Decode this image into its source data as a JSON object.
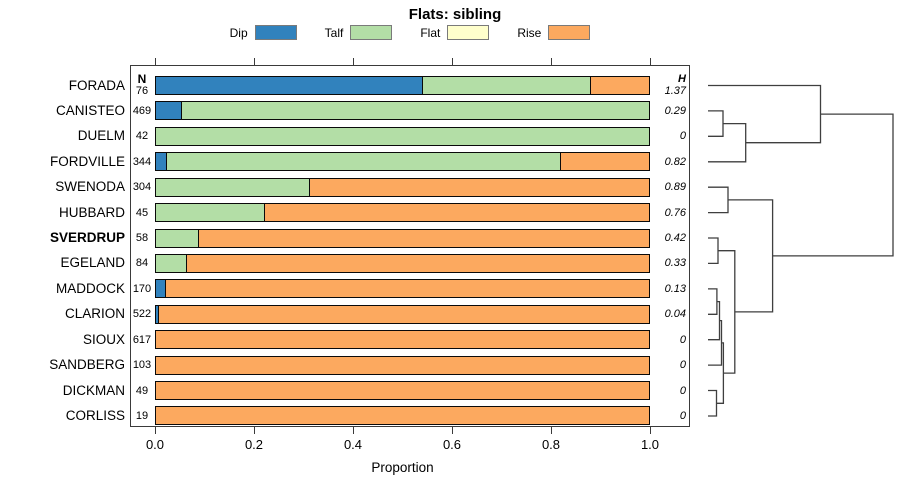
{
  "title": "Flats: sibling",
  "legend": [
    {
      "label": "Dip",
      "color": "#3182bd"
    },
    {
      "label": "Talf",
      "color": "#b3dea6"
    },
    {
      "label": "Flat",
      "color": "#ffffcc"
    },
    {
      "label": "Rise",
      "color": "#fca95f"
    }
  ],
  "axis": {
    "ticks": [
      "0.0",
      "0.2",
      "0.4",
      "0.6",
      "0.8",
      "1.0"
    ],
    "xlabel": "Proportion",
    "n_header": "N",
    "h_header": "H"
  },
  "chart_data": {
    "type": "bar",
    "stacked": true,
    "orientation": "horizontal",
    "title": "Flats: sibling",
    "xlabel": "Proportion",
    "xlim": [
      0,
      1
    ],
    "categories": [
      "Dip",
      "Talf",
      "Flat",
      "Rise"
    ],
    "colors": {
      "Dip": "#3182bd",
      "Talf": "#b3dea6",
      "Flat": "#ffffcc",
      "Rise": "#fca95f"
    },
    "rows": [
      {
        "label": "FORADA",
        "bold": false,
        "n": 76,
        "h": "1.37",
        "values": {
          "Dip": 0.54,
          "Talf": 0.34,
          "Flat": 0,
          "Rise": 0.12
        }
      },
      {
        "label": "CANISTEO",
        "bold": false,
        "n": 469,
        "h": "0.29",
        "values": {
          "Dip": 0.05,
          "Talf": 0.95,
          "Flat": 0,
          "Rise": 0
        }
      },
      {
        "label": "DUELM",
        "bold": false,
        "n": 42,
        "h": "0",
        "values": {
          "Dip": 0,
          "Talf": 1,
          "Flat": 0,
          "Rise": 0
        }
      },
      {
        "label": "FORDVILLE",
        "bold": false,
        "n": 344,
        "h": "0.82",
        "values": {
          "Dip": 0.02,
          "Talf": 0.8,
          "Flat": 0,
          "Rise": 0.18
        }
      },
      {
        "label": "SWENODA",
        "bold": false,
        "n": 304,
        "h": "0.89",
        "values": {
          "Dip": 0,
          "Talf": 0.31,
          "Flat": 0,
          "Rise": 0.69
        }
      },
      {
        "label": "HUBBARD",
        "bold": false,
        "n": 45,
        "h": "0.76",
        "values": {
          "Dip": 0,
          "Talf": 0.22,
          "Flat": 0,
          "Rise": 0.78
        }
      },
      {
        "label": "SVERDRUP",
        "bold": true,
        "n": 58,
        "h": "0.42",
        "values": {
          "Dip": 0,
          "Talf": 0.085,
          "Flat": 0,
          "Rise": 0.915
        }
      },
      {
        "label": "EGELAND",
        "bold": false,
        "n": 84,
        "h": "0.33",
        "values": {
          "Dip": 0,
          "Talf": 0.06,
          "Flat": 0,
          "Rise": 0.94
        }
      },
      {
        "label": "MADDOCK",
        "bold": false,
        "n": 170,
        "h": "0.13",
        "values": {
          "Dip": 0.018,
          "Talf": 0,
          "Flat": 0,
          "Rise": 0.982
        }
      },
      {
        "label": "CLARION",
        "bold": false,
        "n": 522,
        "h": "0.04",
        "values": {
          "Dip": 0.004,
          "Talf": 0,
          "Flat": 0,
          "Rise": 0.996
        }
      },
      {
        "label": "SIOUX",
        "bold": false,
        "n": 617,
        "h": "0",
        "values": {
          "Dip": 0,
          "Talf": 0,
          "Flat": 0,
          "Rise": 1
        }
      },
      {
        "label": "SANDBERG",
        "bold": false,
        "n": 103,
        "h": "0",
        "values": {
          "Dip": 0,
          "Talf": 0,
          "Flat": 0,
          "Rise": 1
        }
      },
      {
        "label": "DICKMAN",
        "bold": false,
        "n": 49,
        "h": "0",
        "values": {
          "Dip": 0,
          "Talf": 0,
          "Flat": 0,
          "Rise": 1
        }
      },
      {
        "label": "CORLISS",
        "bold": false,
        "n": 19,
        "h": "0",
        "values": {
          "Dip": 0,
          "Talf": 0,
          "Flat": 0,
          "Rise": 1
        }
      }
    ],
    "dendrogram": {
      "note": "heights normalized 0-1 of dendrogram width, leaves at left",
      "merges": [
        {
          "id": "m1",
          "a": "CANISTEO",
          "b": "DUELM",
          "h": 0.081
        },
        {
          "id": "m2",
          "a": "m1",
          "b": "FORDVILLE",
          "h": 0.204
        },
        {
          "id": "m3",
          "a": "FORADA",
          "b": "m2",
          "h": 0.608
        },
        {
          "id": "m4",
          "a": "SWENODA",
          "b": "HUBBARD",
          "h": 0.108
        },
        {
          "id": "m5",
          "a": "SVERDRUP",
          "b": "EGELAND",
          "h": 0.054
        },
        {
          "id": "m6",
          "a": "MADDOCK",
          "b": "CLARION",
          "h": 0.048
        },
        {
          "id": "m7",
          "a": "m6",
          "b": "SIOUX",
          "h": 0.062
        },
        {
          "id": "m8",
          "a": "m7",
          "b": "SANDBERG",
          "h": 0.073
        },
        {
          "id": "m9",
          "a": "DICKMAN",
          "b": "CORLISS",
          "h": 0.046
        },
        {
          "id": "m10",
          "a": "m8",
          "b": "m9",
          "h": 0.083
        },
        {
          "id": "m11",
          "a": "m5",
          "b": "m10",
          "h": 0.145
        },
        {
          "id": "m12",
          "a": "m4",
          "b": "m11",
          "h": 0.349
        },
        {
          "id": "m13",
          "a": "m3",
          "b": "m12",
          "h": 1.0
        }
      ]
    }
  }
}
